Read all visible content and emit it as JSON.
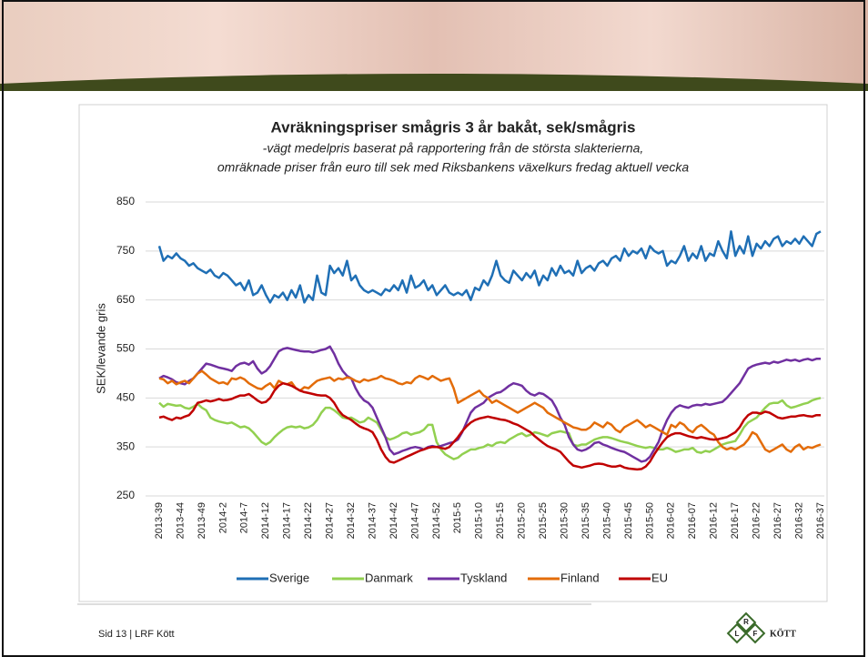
{
  "chart_data": {
    "type": "line",
    "title": "Avräkningspriser smågris 3 år bakåt, sek/smågris",
    "subtitle": [
      "-vägt medelpris baserat på rapportering från de största slakterierna,",
      "omräknade priser från euro till sek med Riksbankens växelkurs fredag aktuell vecka"
    ],
    "y_label": "SEK/levande gris",
    "ylim": [
      250,
      850
    ],
    "yticks": [
      250,
      350,
      450,
      550,
      650,
      750,
      850
    ],
    "grid": true,
    "legend": "bottom",
    "categories": [
      "2013-39",
      null,
      null,
      null,
      null,
      "2013-44",
      null,
      null,
      null,
      null,
      "2013-49",
      null,
      null,
      null,
      null,
      "2014-2",
      null,
      null,
      null,
      null,
      "2014-7",
      null,
      null,
      null,
      null,
      "2014-12",
      null,
      null,
      null,
      null,
      "2014-17",
      null,
      null,
      null,
      null,
      "2014-22",
      null,
      null,
      null,
      null,
      "2014-27",
      null,
      null,
      null,
      null,
      "2014-32",
      null,
      null,
      null,
      null,
      "2014-37",
      null,
      null,
      null,
      null,
      "2014-42",
      null,
      null,
      null,
      null,
      "2014-47",
      null,
      null,
      null,
      null,
      "2014-52",
      null,
      null,
      null,
      null,
      "2015-5",
      null,
      null,
      null,
      null,
      "2015-10",
      null,
      null,
      null,
      null,
      "2015-15",
      null,
      null,
      null,
      null,
      "2015-20",
      null,
      null,
      null,
      null,
      "2015-25",
      null,
      null,
      null,
      null,
      "2015-30",
      null,
      null,
      null,
      null,
      "2015-35",
      null,
      null,
      null,
      null,
      "2015-40",
      null,
      null,
      null,
      null,
      "2015-45",
      null,
      null,
      null,
      null,
      "2015-50",
      null,
      null,
      null,
      null,
      "2016-02",
      null,
      null,
      null,
      null,
      "2016-07",
      null,
      null,
      null,
      null,
      "2016-12",
      null,
      null,
      null,
      null,
      "2016-17",
      null,
      null,
      null,
      null,
      "2016-22",
      null,
      null,
      null,
      null,
      "2016-27",
      null,
      null,
      null,
      null,
      "2016-32",
      null,
      null,
      null,
      null,
      "2016-37"
    ],
    "series": [
      {
        "name": "Sverige",
        "color": "#1f6fb5",
        "values": [
          760,
          730,
          740,
          735,
          745,
          735,
          730,
          720,
          725,
          715,
          710,
          705,
          712,
          700,
          695,
          705,
          700,
          690,
          680,
          685,
          670,
          690,
          660,
          665,
          680,
          660,
          645,
          660,
          655,
          665,
          650,
          670,
          655,
          680,
          645,
          660,
          650,
          700,
          665,
          660,
          720,
          705,
          715,
          700,
          730,
          690,
          700,
          680,
          670,
          665,
          670,
          665,
          660,
          672,
          668,
          680,
          670,
          690,
          665,
          700,
          675,
          680,
          690,
          670,
          680,
          660,
          670,
          680,
          665,
          660,
          665,
          660,
          670,
          650,
          675,
          670,
          690,
          680,
          700,
          730,
          700,
          690,
          685,
          710,
          700,
          690,
          705,
          695,
          710,
          680,
          700,
          690,
          715,
          700,
          720,
          705,
          710,
          700,
          730,
          705,
          715,
          720,
          710,
          725,
          730,
          720,
          735,
          740,
          730,
          755,
          740,
          750,
          745,
          755,
          735,
          760,
          750,
          745,
          750,
          720,
          730,
          725,
          740,
          760,
          730,
          745,
          735,
          760,
          730,
          745,
          740,
          770,
          750,
          735,
          790,
          740,
          760,
          745,
          780,
          740,
          765,
          755,
          770,
          760,
          775,
          780,
          760,
          770,
          765,
          775,
          765,
          780,
          770,
          760,
          785,
          790
        ]
      },
      {
        "name": "Danmark",
        "color": "#92d050",
        "values": [
          440,
          432,
          438,
          436,
          434,
          435,
          430,
          428,
          432,
          438,
          430,
          425,
          410,
          405,
          402,
          400,
          398,
          400,
          395,
          390,
          392,
          388,
          380,
          370,
          360,
          355,
          360,
          370,
          378,
          385,
          390,
          392,
          390,
          392,
          388,
          390,
          395,
          405,
          420,
          430,
          430,
          425,
          418,
          410,
          408,
          410,
          405,
          400,
          402,
          410,
          405,
          400,
          385,
          370,
          365,
          368,
          372,
          378,
          380,
          375,
          378,
          380,
          385,
          395,
          395,
          360,
          345,
          335,
          330,
          325,
          328,
          335,
          340,
          345,
          345,
          348,
          350,
          355,
          352,
          358,
          360,
          358,
          365,
          370,
          375,
          378,
          372,
          375,
          380,
          378,
          375,
          372,
          378,
          380,
          382,
          380,
          378,
          355,
          352,
          355,
          355,
          360,
          365,
          368,
          370,
          370,
          368,
          365,
          362,
          360,
          358,
          355,
          352,
          350,
          348,
          350,
          348,
          345,
          345,
          348,
          345,
          340,
          342,
          345,
          345,
          348,
          340,
          338,
          342,
          340,
          345,
          350,
          355,
          358,
          360,
          362,
          375,
          390,
          400,
          405,
          410,
          420,
          430,
          438,
          440,
          440,
          445,
          435,
          430,
          432,
          435,
          438,
          440,
          445,
          448,
          450
        ]
      },
      {
        "name": "Tyskland",
        "color": "#7030a0",
        "values": [
          490,
          495,
          492,
          488,
          482,
          480,
          478,
          485,
          490,
          500,
          510,
          520,
          518,
          515,
          512,
          510,
          508,
          505,
          515,
          520,
          522,
          518,
          525,
          510,
          500,
          505,
          515,
          530,
          545,
          550,
          552,
          550,
          548,
          546,
          545,
          545,
          543,
          545,
          548,
          550,
          555,
          540,
          520,
          505,
          495,
          490,
          470,
          455,
          445,
          440,
          430,
          410,
          390,
          370,
          345,
          335,
          338,
          342,
          345,
          348,
          350,
          348,
          345,
          350,
          352,
          350,
          352,
          355,
          358,
          360,
          365,
          380,
          400,
          420,
          430,
          435,
          440,
          450,
          455,
          460,
          462,
          468,
          475,
          480,
          478,
          475,
          465,
          458,
          455,
          460,
          458,
          452,
          445,
          430,
          410,
          395,
          370,
          355,
          345,
          342,
          345,
          350,
          358,
          360,
          355,
          352,
          348,
          345,
          342,
          340,
          335,
          330,
          325,
          320,
          322,
          330,
          345,
          360,
          385,
          405,
          420,
          430,
          435,
          432,
          430,
          434,
          436,
          435,
          438,
          436,
          438,
          440,
          442,
          450,
          460,
          470,
          480,
          495,
          510,
          515,
          518,
          520,
          522,
          520,
          524,
          522,
          525,
          528,
          526,
          528,
          525,
          528,
          530,
          527,
          530,
          530
        ]
      },
      {
        "name": "Finland",
        "color": "#e36c09",
        "values": [
          490,
          488,
          480,
          485,
          478,
          482,
          485,
          480,
          490,
          500,
          505,
          498,
          490,
          485,
          480,
          482,
          478,
          490,
          488,
          492,
          488,
          480,
          475,
          470,
          468,
          475,
          480,
          470,
          485,
          480,
          478,
          482,
          470,
          465,
          472,
          470,
          478,
          485,
          488,
          490,
          492,
          485,
          490,
          488,
          492,
          490,
          485,
          482,
          488,
          485,
          488,
          490,
          495,
          490,
          488,
          485,
          480,
          478,
          482,
          480,
          490,
          495,
          492,
          488,
          495,
          490,
          485,
          488,
          490,
          470,
          440,
          445,
          450,
          455,
          460,
          465,
          455,
          450,
          440,
          445,
          440,
          435,
          430,
          425,
          420,
          425,
          430,
          435,
          440,
          435,
          430,
          420,
          415,
          410,
          405,
          400,
          395,
          390,
          388,
          385,
          385,
          390,
          400,
          395,
          390,
          400,
          395,
          385,
          380,
          390,
          395,
          400,
          405,
          398,
          390,
          395,
          390,
          385,
          380,
          375,
          395,
          390,
          400,
          395,
          385,
          380,
          390,
          395,
          388,
          380,
          375,
          360,
          350,
          345,
          348,
          345,
          350,
          355,
          365,
          380,
          375,
          360,
          345,
          340,
          345,
          350,
          355,
          345,
          340,
          350,
          355,
          345,
          350,
          348,
          352,
          355
        ]
      },
      {
        "name": "EU",
        "color": "#c00000",
        "values": [
          410,
          412,
          408,
          405,
          410,
          408,
          412,
          415,
          425,
          440,
          442,
          445,
          443,
          445,
          448,
          445,
          446,
          448,
          452,
          455,
          455,
          458,
          452,
          445,
          440,
          442,
          450,
          465,
          475,
          480,
          478,
          475,
          470,
          465,
          462,
          460,
          458,
          456,
          455,
          455,
          450,
          440,
          425,
          415,
          410,
          405,
          398,
          392,
          388,
          385,
          380,
          365,
          345,
          330,
          320,
          318,
          322,
          326,
          330,
          334,
          338,
          342,
          345,
          348,
          350,
          350,
          348,
          346,
          350,
          360,
          370,
          382,
          392,
          400,
          405,
          408,
          410,
          412,
          410,
          408,
          406,
          405,
          402,
          398,
          395,
          390,
          385,
          380,
          372,
          365,
          358,
          352,
          348,
          345,
          340,
          330,
          320,
          312,
          310,
          308,
          310,
          312,
          315,
          316,
          315,
          312,
          310,
          310,
          312,
          308,
          306,
          305,
          304,
          305,
          310,
          320,
          335,
          348,
          360,
          370,
          375,
          378,
          378,
          375,
          372,
          370,
          368,
          370,
          368,
          366,
          365,
          366,
          368,
          370,
          375,
          380,
          390,
          405,
          415,
          420,
          420,
          418,
          422,
          420,
          415,
          410,
          408,
          410,
          412,
          412,
          414,
          415,
          413,
          412,
          415,
          415
        ]
      }
    ]
  },
  "footer": {
    "text": "Sid 13 | LRF Kött",
    "logo_letters": [
      "L",
      "R",
      "F"
    ],
    "logo_text": "KÖTT"
  }
}
